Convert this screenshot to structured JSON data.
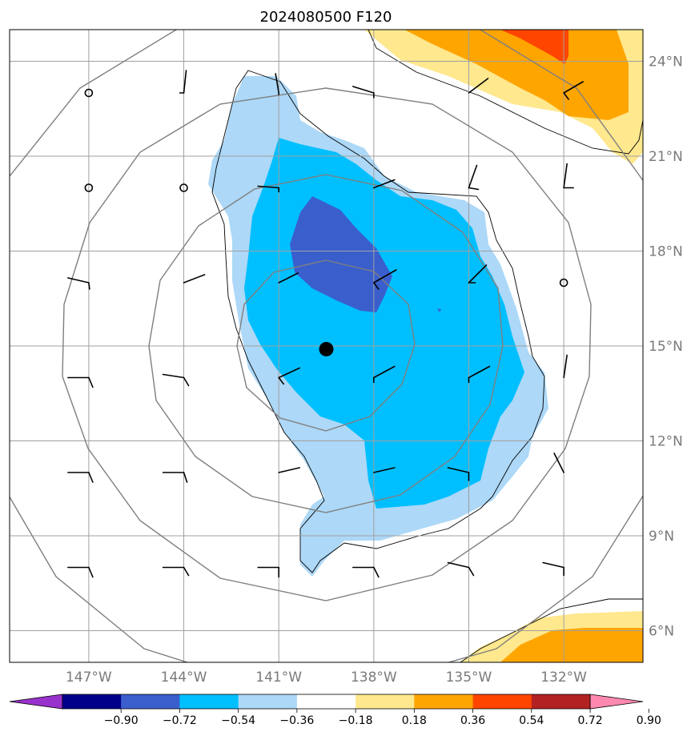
{
  "title": "2024080500 F120",
  "map": {
    "lon_labels": [
      "147°W",
      "144°W",
      "141°W",
      "138°W",
      "135°W",
      "132°W"
    ],
    "lat_labels": [
      "24°N",
      "21°N",
      "18°N",
      "15°N",
      "12°N",
      "9°N",
      "6°N"
    ],
    "lon_values": [
      -147,
      -144,
      -141,
      -138,
      -135,
      -132
    ],
    "lat_values": [
      24,
      21,
      18,
      15,
      12,
      9,
      6
    ],
    "lon_range": [
      -149.5,
      -129.5
    ],
    "lat_range": [
      5,
      25
    ],
    "grid": true,
    "center_marker": {
      "lon": -139.5,
      "lat": 14.9
    },
    "range_rings_count": 4,
    "calm_wind_circles": [
      {
        "lon": -147,
        "lat": 23
      },
      {
        "lon": -147,
        "lat": 20
      },
      {
        "lon": -144,
        "lat": 20
      },
      {
        "lon": -132,
        "lat": 17
      }
    ]
  },
  "colorbar": {
    "levels": [
      -0.9,
      -0.72,
      -0.54,
      -0.36,
      -0.18,
      0.18,
      0.36,
      0.54,
      0.72,
      0.9
    ],
    "labels": [
      "−0.90",
      "−0.72",
      "−0.54",
      "−0.36",
      "−0.18",
      "0.18",
      "0.36",
      "0.54",
      "0.72",
      "0.90"
    ],
    "colors": [
      "#9932cc",
      "#00008b",
      "#3a5fcd",
      "#00bfff",
      "#add8f7",
      "#ffffff",
      "#ffe88e",
      "#ffa500",
      "#ff4500",
      "#b22222",
      "#ff88b0"
    ],
    "extend": "both"
  }
}
